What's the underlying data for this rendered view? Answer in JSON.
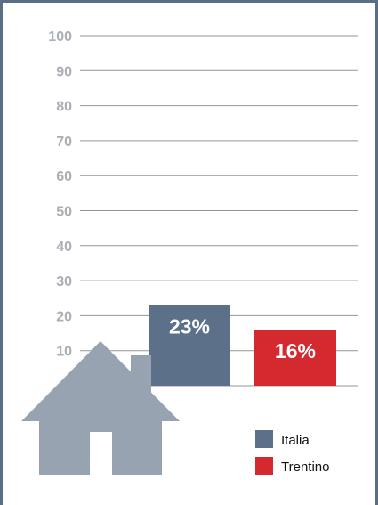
{
  "chart_data": {
    "type": "bar",
    "categories": [
      "Italia",
      "Trentino"
    ],
    "values": [
      23,
      16
    ],
    "data_labels": [
      "23%",
      "16%"
    ],
    "ylim": [
      0,
      100
    ],
    "yticks": [
      10,
      20,
      30,
      40,
      50,
      60,
      70,
      80,
      90,
      100
    ],
    "grid": true,
    "legend": {
      "placement": "bottom-right",
      "entries": [
        "Italia",
        "Trentino"
      ]
    },
    "colors": {
      "Italia": "#5c7089",
      "Trentino": "#d42a2f"
    }
  },
  "decoration": {
    "icon": "house-icon",
    "color": "#98a3b1"
  },
  "frame": {
    "color": "#5a6e84"
  }
}
